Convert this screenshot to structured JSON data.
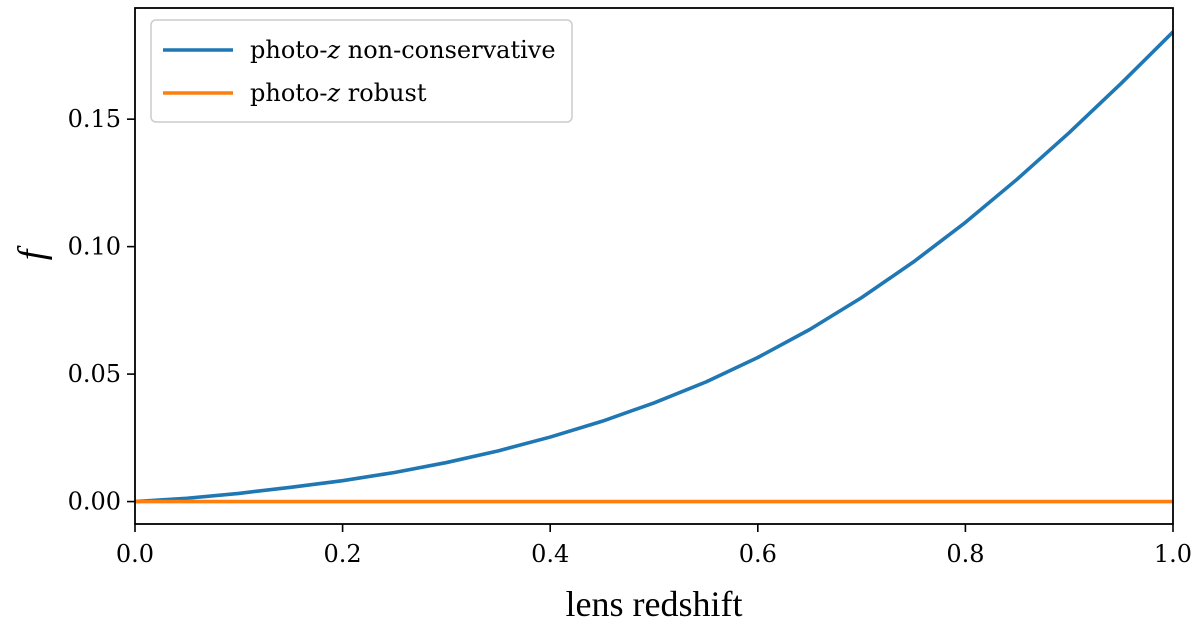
{
  "chart_data": {
    "type": "line",
    "xlabel": "lens redshift",
    "ylabel": "f",
    "xlim": [
      0.0,
      1.0
    ],
    "ylim": [
      -0.0088,
      0.1936
    ],
    "xticks": [
      0.0,
      0.2,
      0.4,
      0.6,
      0.8,
      1.0
    ],
    "xtick_labels": [
      "0.0",
      "0.2",
      "0.4",
      "0.6",
      "0.8",
      "1.0"
    ],
    "yticks": [
      0.0,
      0.05,
      0.1,
      0.15
    ],
    "ytick_labels": [
      "0.00",
      "0.05",
      "0.10",
      "0.15"
    ],
    "grid": false,
    "legend_position": "top-left",
    "series": [
      {
        "name_parts": [
          "photo-",
          "z",
          " non-conservative"
        ],
        "color": "#1f77b4",
        "x": [
          0.0,
          0.05,
          0.1,
          0.15,
          0.2,
          0.25,
          0.3,
          0.35,
          0.4,
          0.45,
          0.5,
          0.55,
          0.6,
          0.65,
          0.7,
          0.75,
          0.8,
          0.85,
          0.9,
          0.95,
          1.0
        ],
        "y": [
          0.0,
          0.0013,
          0.0032,
          0.0056,
          0.0082,
          0.0114,
          0.0153,
          0.0199,
          0.0253,
          0.0315,
          0.0387,
          0.0469,
          0.0565,
          0.0675,
          0.08,
          0.094,
          0.1095,
          0.1265,
          0.1447,
          0.164,
          0.1842
        ]
      },
      {
        "name_parts": [
          "photo-",
          "z",
          " robust"
        ],
        "color": "#ff7f0e",
        "x": [
          0.0,
          1.0
        ],
        "y": [
          0.0,
          0.0
        ]
      }
    ]
  }
}
